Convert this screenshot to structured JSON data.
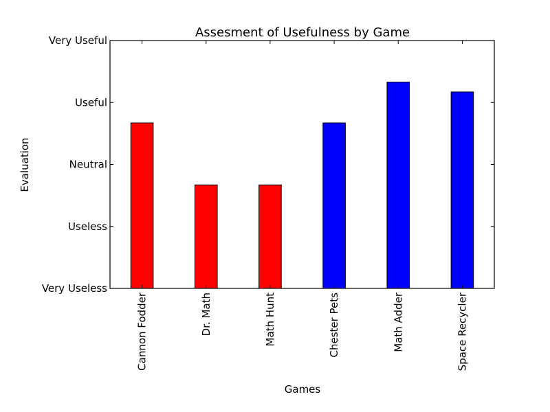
{
  "chart_data": {
    "type": "bar",
    "title": "Assesment of Usefulness by Game",
    "xlabel": "Games",
    "ylabel": "Evaluation",
    "categories": [
      "Cannon Fodder",
      "Dr. Math",
      "Math Hunt",
      "Chester Pets",
      "Math Adder",
      "Space Recycler"
    ],
    "values": [
      2.67,
      1.67,
      1.67,
      2.67,
      3.33,
      3.17
    ],
    "bar_colors": [
      "#ff0000",
      "#ff0000",
      "#ff0000",
      "#0000ff",
      "#0000ff",
      "#0000ff"
    ],
    "yticks": [
      0,
      1,
      2,
      3,
      4
    ],
    "ytick_labels": [
      "Very Useless",
      "Useless",
      "Neutral",
      "Useful",
      "Very Useful"
    ],
    "ylim": [
      0,
      4
    ],
    "grid": false
  }
}
